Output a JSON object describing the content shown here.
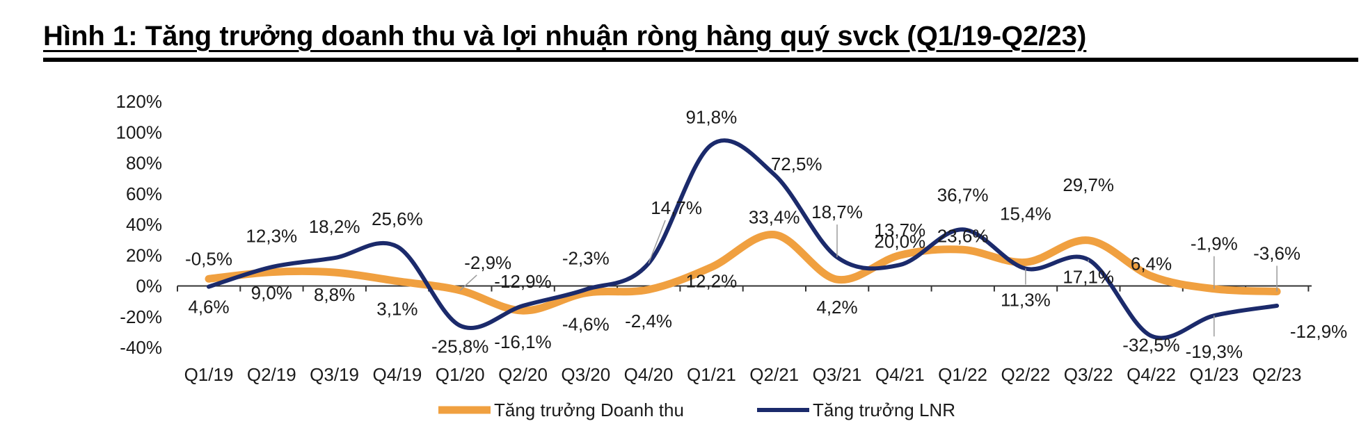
{
  "title": "Hình 1: Tăng trưởng doanh thu và lợi nhuận ròng hàng quý svck (Q1/19-Q2/23)",
  "chart_data": {
    "type": "line",
    "categories": [
      "Q1/19",
      "Q2/19",
      "Q3/19",
      "Q4/19",
      "Q1/20",
      "Q2/20",
      "Q3/20",
      "Q4/20",
      "Q1/21",
      "Q2/21",
      "Q3/21",
      "Q4/21",
      "Q1/22",
      "Q2/22",
      "Q3/22",
      "Q4/22",
      "Q1/23",
      "Q2/23"
    ],
    "series": [
      {
        "name": "Tăng trưởng Doanh thu",
        "color": "#F0A040",
        "values": [
          4.6,
          9.0,
          8.8,
          3.1,
          -2.9,
          -16.1,
          -4.6,
          -2.4,
          12.2,
          33.4,
          4.2,
          20.0,
          23.6,
          15.4,
          29.7,
          6.4,
          -1.9,
          -3.6
        ],
        "labels": [
          "4,6%",
          "9,0%",
          "8,8%",
          "3,1%",
          "-2,9%",
          "-16,1%",
          "-4,6%",
          "-2,4%",
          "12,2%",
          "33,4%",
          "4,2%",
          "20,0%",
          "23,6%",
          "15,4%",
          "29,7%",
          "6,4%",
          "-1,9%",
          "-3,6%"
        ]
      },
      {
        "name": "Tăng trưởng LNR",
        "color": "#1B2A6B",
        "values": [
          -0.5,
          12.3,
          18.2,
          25.6,
          -25.8,
          -12.9,
          -2.3,
          14.7,
          91.8,
          72.5,
          18.7,
          13.7,
          36.7,
          11.3,
          17.1,
          -32.5,
          -19.3,
          -12.9
        ],
        "labels": [
          "-0,5%",
          "12,3%",
          "18,2%",
          "25,6%",
          "-25,8%",
          "-12,9%",
          "-2,3%",
          "14,7%",
          "91,8%",
          "72,5%",
          "18,7%",
          "13,7%",
          "36,7%",
          "11,3%",
          "17,1%",
          "-32,5%",
          "-19,3%",
          "-12,9%"
        ]
      }
    ],
    "ylim": [
      -40,
      120
    ],
    "yticks": [
      "120%",
      "100%",
      "80%",
      "60%",
      "40%",
      "20%",
      "0%",
      "-20%",
      "-40%"
    ],
    "legend_position": "bottom",
    "grid": false
  }
}
